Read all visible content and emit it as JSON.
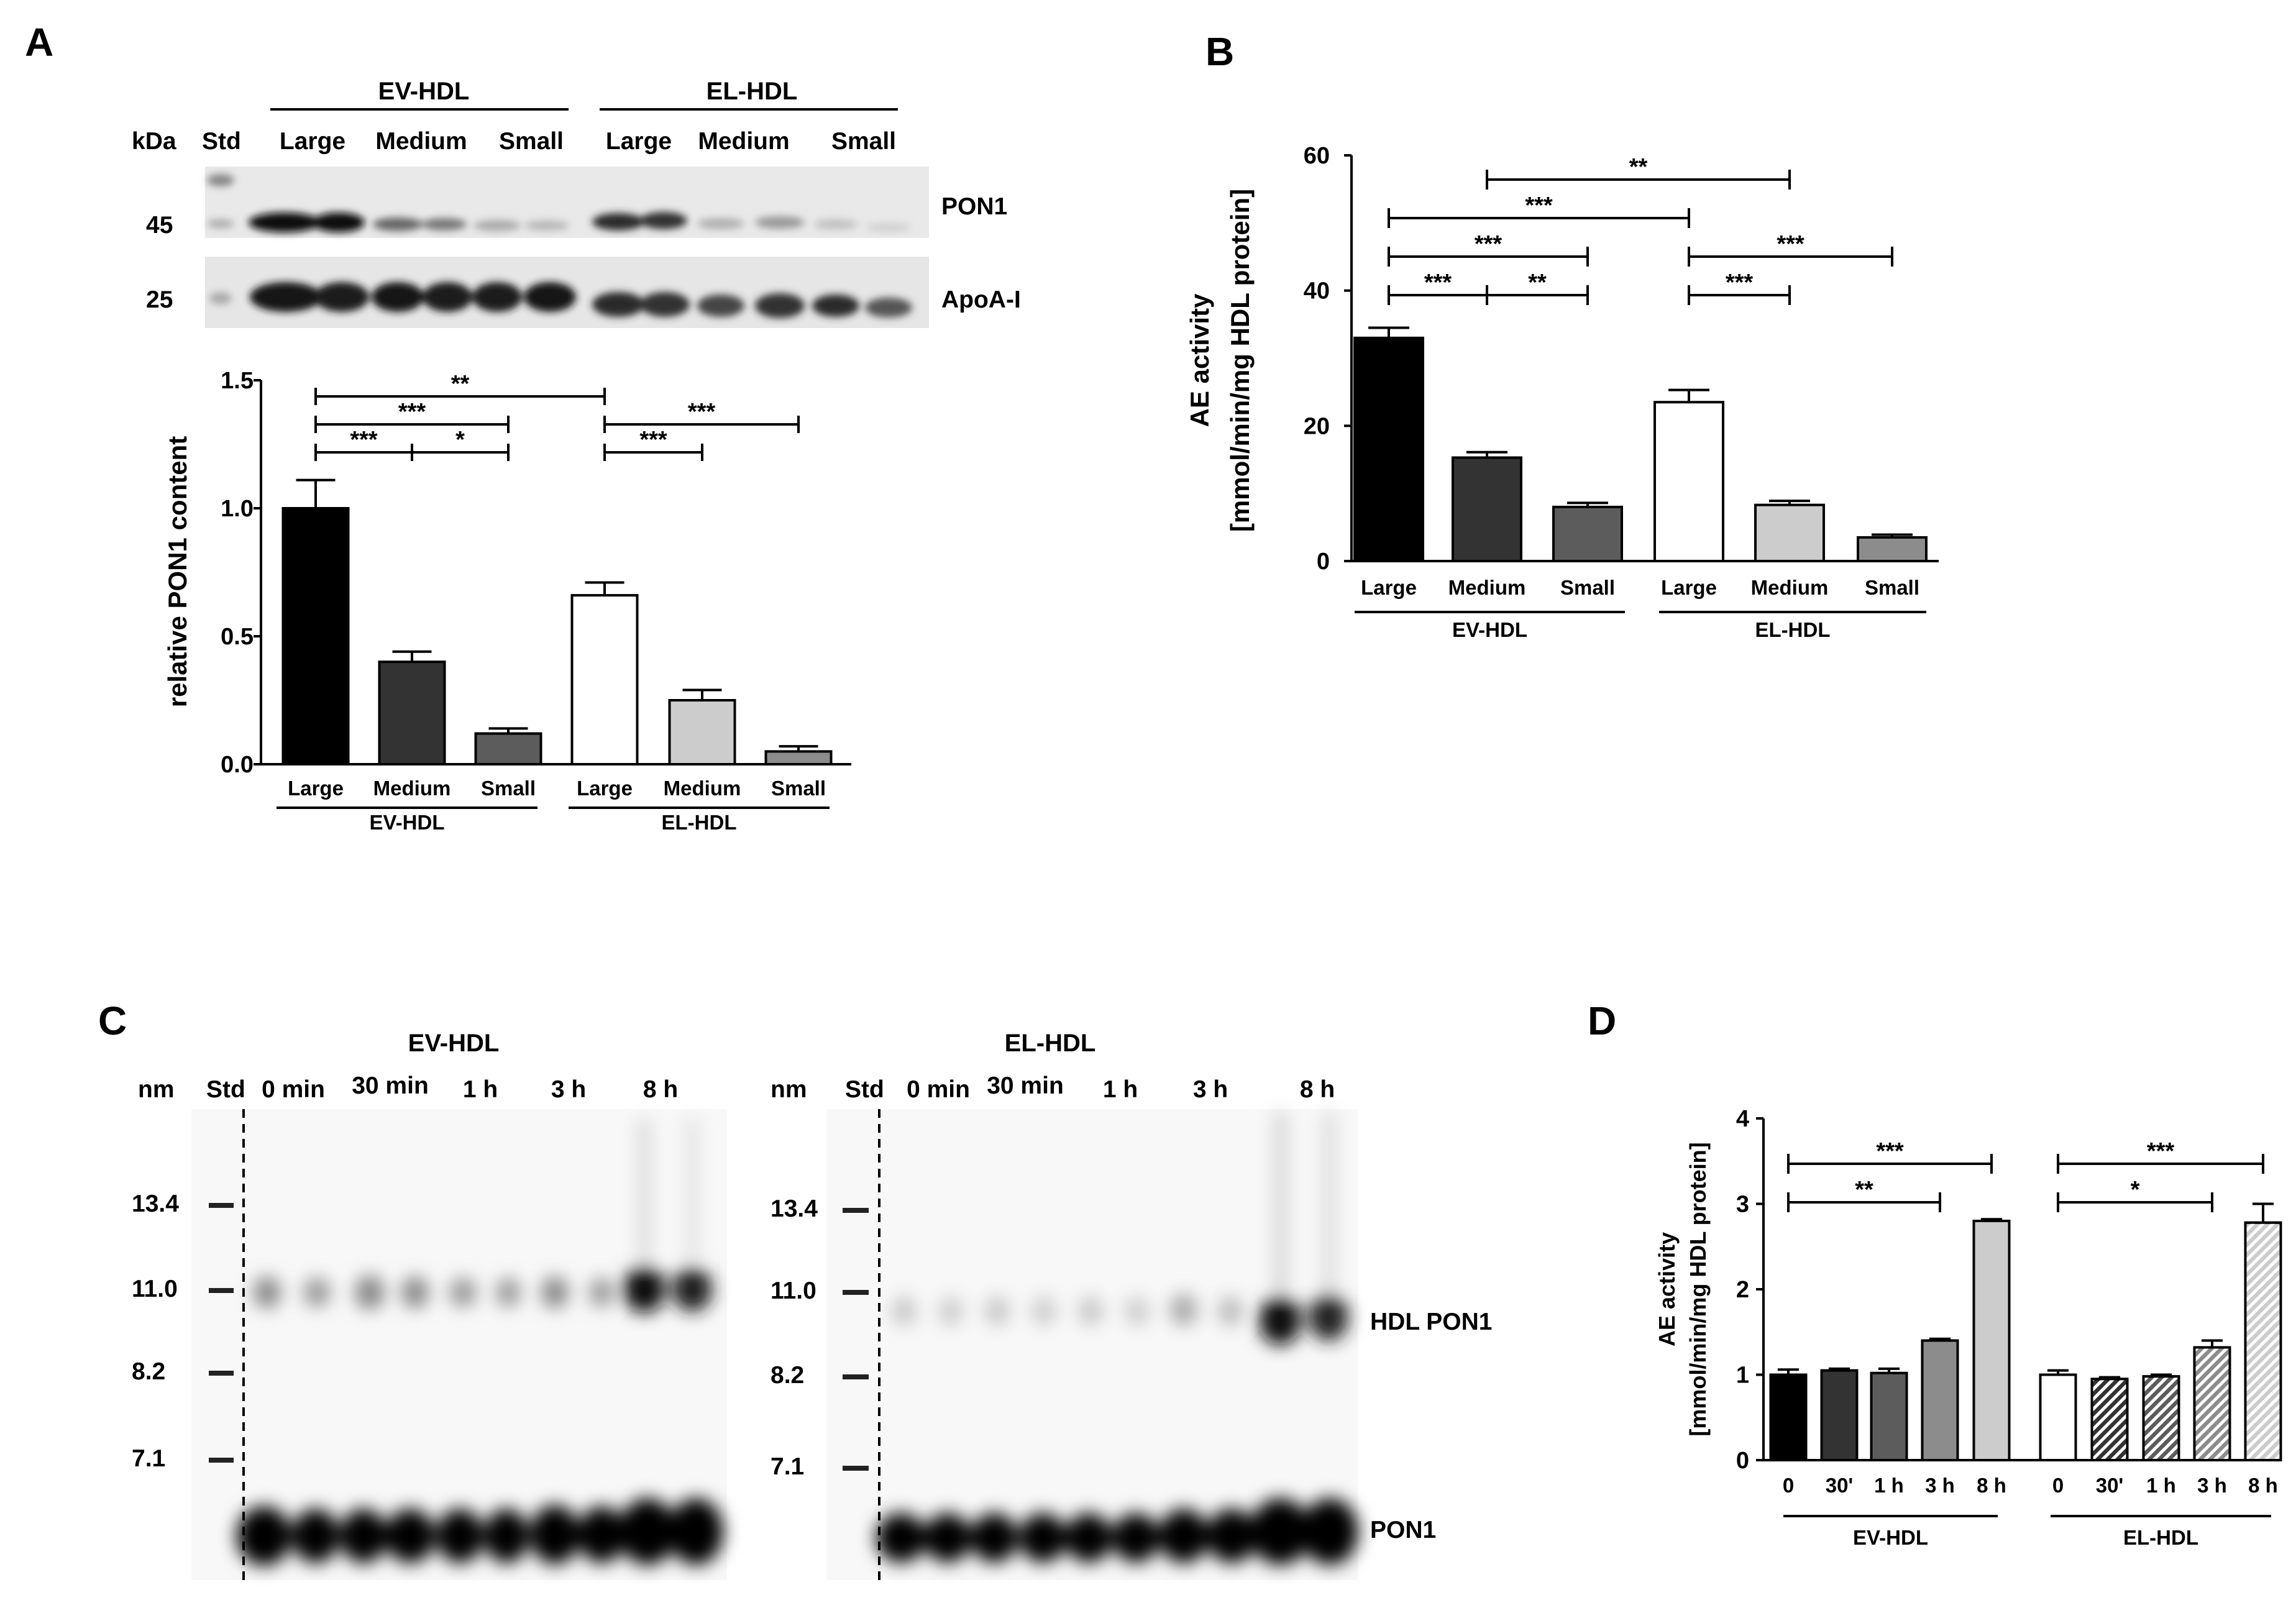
{
  "panels": {
    "a": "A",
    "b": "B",
    "c": "C",
    "d": "D"
  },
  "blot_a": {
    "kda": "kDa",
    "std": "Std",
    "groups": [
      "EV-HDL",
      "EL-HDL"
    ],
    "lanes": [
      "Large",
      "Medium",
      "Small",
      "Large",
      "Medium",
      "Small"
    ],
    "markers": [
      "45",
      "25"
    ],
    "bands": [
      "PON1",
      "ApoA-I"
    ]
  },
  "blot_c": {
    "left": {
      "title": "EV-HDL",
      "nm": "nm",
      "std": "Std",
      "lanes": [
        "0 min",
        "30 min",
        "1 h",
        "3 h",
        "8 h"
      ],
      "markers": [
        "13.4",
        "11.0",
        "8.2",
        "7.1"
      ]
    },
    "right": {
      "title": "EL-HDL",
      "nm": "nm",
      "std": "Std",
      "lanes": [
        "0 min",
        "30 min",
        "1 h",
        "3 h",
        "8 h"
      ],
      "markers": [
        "13.4",
        "11.0",
        "8.2",
        "7.1"
      ]
    },
    "bands": [
      "HDL PON1",
      "PON1"
    ]
  },
  "chart_data": [
    {
      "id": "A",
      "type": "bar",
      "ylabel": "relative PON1 content",
      "ylim": [
        0,
        1.5
      ],
      "yticks": [
        "0.0",
        "0.5",
        "1.0",
        "1.5"
      ],
      "categories": [
        "Large",
        "Medium",
        "Small",
        "Large",
        "Medium",
        "Small"
      ],
      "groups": [
        "EV-HDL",
        "EL-HDL"
      ],
      "values": [
        1.0,
        0.4,
        0.12,
        0.66,
        0.25,
        0.05
      ],
      "errors": [
        0.11,
        0.04,
        0.02,
        0.05,
        0.04,
        0.02
      ],
      "fills": [
        "#000000",
        "#333333",
        "#5c5c5c",
        "#ffffff",
        "#cccccc",
        "#8c8c8c"
      ],
      "significance": [
        {
          "from": 0,
          "to": 1,
          "label": "***",
          "level": 0
        },
        {
          "from": 1,
          "to": 2,
          "label": "*",
          "level": 0
        },
        {
          "from": 0,
          "to": 2,
          "label": "***",
          "level": 1
        },
        {
          "from": 0,
          "to": 3,
          "label": "**",
          "level": 2
        },
        {
          "from": 3,
          "to": 4,
          "label": "***",
          "level": 0
        },
        {
          "from": 3,
          "to": 5,
          "label": "***",
          "level": 1
        }
      ]
    },
    {
      "id": "B",
      "type": "bar",
      "ylabel": "AE activity",
      "ylabel2": "[mmol/min/mg HDL protein]",
      "ylim": [
        0,
        60
      ],
      "yticks": [
        "0",
        "20",
        "40",
        "60"
      ],
      "categories": [
        "Large",
        "Medium",
        "Small",
        "Large",
        "Medium",
        "Small"
      ],
      "groups": [
        "EV-HDL",
        "EL-HDL"
      ],
      "values": [
        33,
        15.3,
        8,
        23.5,
        8.3,
        3.5
      ],
      "errors": [
        1.5,
        0.8,
        0.6,
        1.8,
        0.6,
        0.4
      ],
      "fills": [
        "#000000",
        "#333333",
        "#5c5c5c",
        "#ffffff",
        "#cccccc",
        "#8c8c8c"
      ],
      "significance": [
        {
          "from": 0,
          "to": 1,
          "label": "***",
          "level": 0
        },
        {
          "from": 1,
          "to": 2,
          "label": "**",
          "level": 0
        },
        {
          "from": 0,
          "to": 2,
          "label": "***",
          "level": 1
        },
        {
          "from": 0,
          "to": 3,
          "label": "***",
          "level": 2
        },
        {
          "from": 1,
          "to": 4,
          "label": "**",
          "level": 3
        },
        {
          "from": 3,
          "to": 4,
          "label": "***",
          "level": 0
        },
        {
          "from": 3,
          "to": 5,
          "label": "***",
          "level": 1
        }
      ]
    },
    {
      "id": "D",
      "type": "bar",
      "ylabel": "AE activity",
      "ylabel2": "[mmol/min/mg HDL protein]",
      "ylim": [
        0,
        4
      ],
      "yticks": [
        "0",
        "1",
        "2",
        "3",
        "4"
      ],
      "categories": [
        "0",
        "30'",
        "1 h",
        "3 h",
        "8 h",
        "0",
        "30'",
        "1 h",
        "3 h",
        "8 h"
      ],
      "groups": [
        "EV-HDL",
        "EL-HDL"
      ],
      "values": [
        1.0,
        1.05,
        1.02,
        1.4,
        2.8,
        1.0,
        0.95,
        0.98,
        1.32,
        2.78
      ],
      "errors": [
        0.06,
        0.02,
        0.05,
        0.02,
        0.02,
        0.05,
        0.02,
        0.02,
        0.08,
        0.22
      ],
      "fills": [
        "#000000",
        "#333333",
        "#5c5c5c",
        "#8c8c8c",
        "#cccccc",
        "#ffffff",
        "#333333",
        "#5c5c5c",
        "#8c8c8c",
        "#cccccc"
      ],
      "hatched": [
        false,
        false,
        false,
        false,
        false,
        false,
        true,
        true,
        true,
        true
      ],
      "significance": [
        {
          "from": 0,
          "to": 3,
          "label": "**",
          "level": 0
        },
        {
          "from": 0,
          "to": 4,
          "label": "***",
          "level": 1
        },
        {
          "from": 5,
          "to": 8,
          "label": "*",
          "level": 0
        },
        {
          "from": 5,
          "to": 9,
          "label": "***",
          "level": 1
        }
      ]
    }
  ]
}
